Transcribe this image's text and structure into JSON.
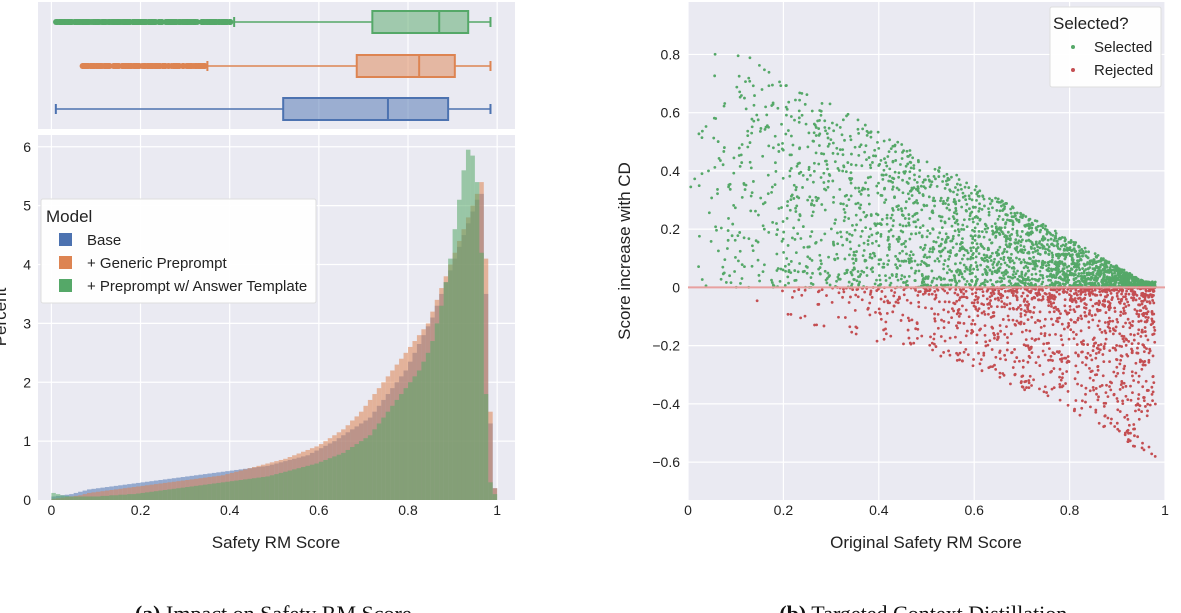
{
  "colors": {
    "base": "#4c72b0",
    "generic": "#dd8452",
    "template": "#55a868",
    "selected": "#55a868",
    "rejected": "#c44e52",
    "panel_bg": "#eaeaf2"
  },
  "chart_data": [
    {
      "type": "box",
      "panel": "a-top",
      "xlim": [
        -0.03,
        1.04
      ],
      "series": [
        {
          "name": "+ Preprompt w/ Answer Template",
          "whisker_low": 0.41,
          "q1": 0.72,
          "median": 0.87,
          "q3": 0.935,
          "whisker_high": 0.985,
          "outliers_from": 0.01,
          "outliers_to": 0.405
        },
        {
          "name": "+ Generic Preprompt",
          "whisker_low": 0.35,
          "q1": 0.685,
          "median": 0.825,
          "q3": 0.905,
          "whisker_high": 0.985,
          "outliers_from": 0.07,
          "outliers_to": 0.345
        },
        {
          "name": "Base",
          "whisker_low": 0.01,
          "q1": 0.52,
          "median": 0.755,
          "q3": 0.89,
          "whisker_high": 0.985
        }
      ]
    },
    {
      "type": "histogram",
      "panel": "a-bottom",
      "xlabel": "Safety RM Score",
      "ylabel": "Percent",
      "xlim": [
        -0.03,
        1.04
      ],
      "ylim": [
        0,
        6.2
      ],
      "xticks": [
        "0",
        "0.2",
        "0.4",
        "0.6",
        "0.8",
        "1"
      ],
      "yticks": [
        "0",
        "1",
        "2",
        "3",
        "4",
        "5",
        "6"
      ],
      "legend_title": "Model",
      "legend_position": "center-left",
      "bin_width": 0.01,
      "series": [
        {
          "name": "Base",
          "color": "#4c72b0",
          "values": [
            0.06,
            0.07,
            0.08,
            0.09,
            0.1,
            0.12,
            0.14,
            0.16,
            0.18,
            0.19,
            0.2,
            0.21,
            0.22,
            0.23,
            0.24,
            0.25,
            0.26,
            0.27,
            0.28,
            0.29,
            0.3,
            0.31,
            0.32,
            0.33,
            0.34,
            0.35,
            0.36,
            0.37,
            0.38,
            0.39,
            0.4,
            0.41,
            0.42,
            0.43,
            0.44,
            0.45,
            0.46,
            0.47,
            0.48,
            0.49,
            0.5,
            0.51,
            0.52,
            0.53,
            0.54,
            0.55,
            0.56,
            0.57,
            0.58,
            0.6,
            0.62,
            0.64,
            0.66,
            0.68,
            0.7,
            0.72,
            0.74,
            0.76,
            0.8,
            0.84,
            0.88,
            0.92,
            0.96,
            1.0,
            1.05,
            1.1,
            1.15,
            1.2,
            1.25,
            1.3,
            1.35,
            1.4,
            1.5,
            1.6,
            1.7,
            1.8,
            1.9,
            2.0,
            2.1,
            2.2,
            2.35,
            2.5,
            2.65,
            2.8,
            2.95,
            3.1,
            3.3,
            3.5,
            3.7,
            3.9,
            4.1,
            4.3,
            4.5,
            4.7,
            4.9,
            5.1,
            5.2,
            3.5,
            1.3,
            0.2
          ]
        },
        {
          "name": "+ Generic Preprompt",
          "color": "#dd8452",
          "values": [
            0.02,
            0.03,
            0.04,
            0.05,
            0.06,
            0.07,
            0.08,
            0.1,
            0.12,
            0.13,
            0.14,
            0.15,
            0.16,
            0.17,
            0.18,
            0.19,
            0.2,
            0.21,
            0.22,
            0.23,
            0.24,
            0.25,
            0.26,
            0.27,
            0.28,
            0.29,
            0.3,
            0.31,
            0.32,
            0.33,
            0.34,
            0.35,
            0.36,
            0.37,
            0.38,
            0.39,
            0.4,
            0.41,
            0.42,
            0.44,
            0.46,
            0.48,
            0.5,
            0.52,
            0.54,
            0.56,
            0.58,
            0.6,
            0.62,
            0.64,
            0.66,
            0.68,
            0.7,
            0.73,
            0.76,
            0.79,
            0.82,
            0.85,
            0.88,
            0.91,
            0.95,
            1.0,
            1.05,
            1.1,
            1.15,
            1.2,
            1.27,
            1.35,
            1.42,
            1.5,
            1.6,
            1.7,
            1.8,
            1.9,
            2.0,
            2.1,
            2.2,
            2.3,
            2.4,
            2.5,
            2.6,
            2.7,
            2.8,
            2.9,
            3.0,
            3.2,
            3.4,
            3.6,
            3.8,
            4.0,
            4.2,
            4.4,
            4.6,
            4.8,
            5.0,
            5.2,
            5.4,
            4.1,
            1.5,
            0.2
          ]
        },
        {
          "name": "+ Preprompt w/ Answer Template",
          "color": "#55a868",
          "values": [
            0.12,
            0.1,
            0.08,
            0.07,
            0.06,
            0.06,
            0.06,
            0.06,
            0.06,
            0.06,
            0.06,
            0.07,
            0.07,
            0.08,
            0.08,
            0.09,
            0.09,
            0.1,
            0.1,
            0.11,
            0.12,
            0.13,
            0.14,
            0.15,
            0.16,
            0.17,
            0.18,
            0.19,
            0.2,
            0.21,
            0.22,
            0.23,
            0.24,
            0.25,
            0.26,
            0.27,
            0.28,
            0.29,
            0.3,
            0.31,
            0.32,
            0.33,
            0.34,
            0.35,
            0.36,
            0.37,
            0.38,
            0.39,
            0.4,
            0.42,
            0.44,
            0.46,
            0.48,
            0.5,
            0.52,
            0.54,
            0.56,
            0.58,
            0.6,
            0.62,
            0.65,
            0.68,
            0.71,
            0.74,
            0.77,
            0.8,
            0.85,
            0.9,
            0.95,
            1.0,
            1.05,
            1.1,
            1.2,
            1.3,
            1.4,
            1.5,
            1.6,
            1.7,
            1.8,
            1.9,
            2.0,
            2.1,
            2.2,
            2.35,
            2.5,
            2.7,
            3.0,
            3.3,
            3.7,
            4.1,
            4.6,
            5.1,
            5.6,
            5.95,
            5.85,
            5.4,
            4.2,
            1.8,
            0.3,
            0.1
          ]
        }
      ]
    },
    {
      "type": "scatter",
      "panel": "b",
      "xlabel": "Original Safety RM Score",
      "ylabel": "Score increase with CD",
      "xlim": [
        0,
        1
      ],
      "ylim": [
        -0.73,
        0.98
      ],
      "xticks": [
        "0",
        "0.2",
        "0.4",
        "0.6",
        "0.8",
        "1"
      ],
      "yticks": [
        "0.8",
        "0.6",
        "0.4",
        "0.2",
        "0",
        "−0.2",
        "−0.4",
        "−0.6"
      ],
      "legend_title": "Selected?",
      "legend_position": "top-right",
      "series": [
        {
          "name": "Selected",
          "color": "#55a868",
          "y_range": [
            0,
            0.9
          ]
        },
        {
          "name": "Rejected",
          "color": "#c44e52",
          "y_range": [
            -0.65,
            0
          ]
        }
      ]
    }
  ],
  "captions": {
    "a_label": "(a)",
    "a_text": "Impact on Safety RM Score.",
    "b_label": "(b)",
    "b_text": "Targeted Context Distillation."
  }
}
